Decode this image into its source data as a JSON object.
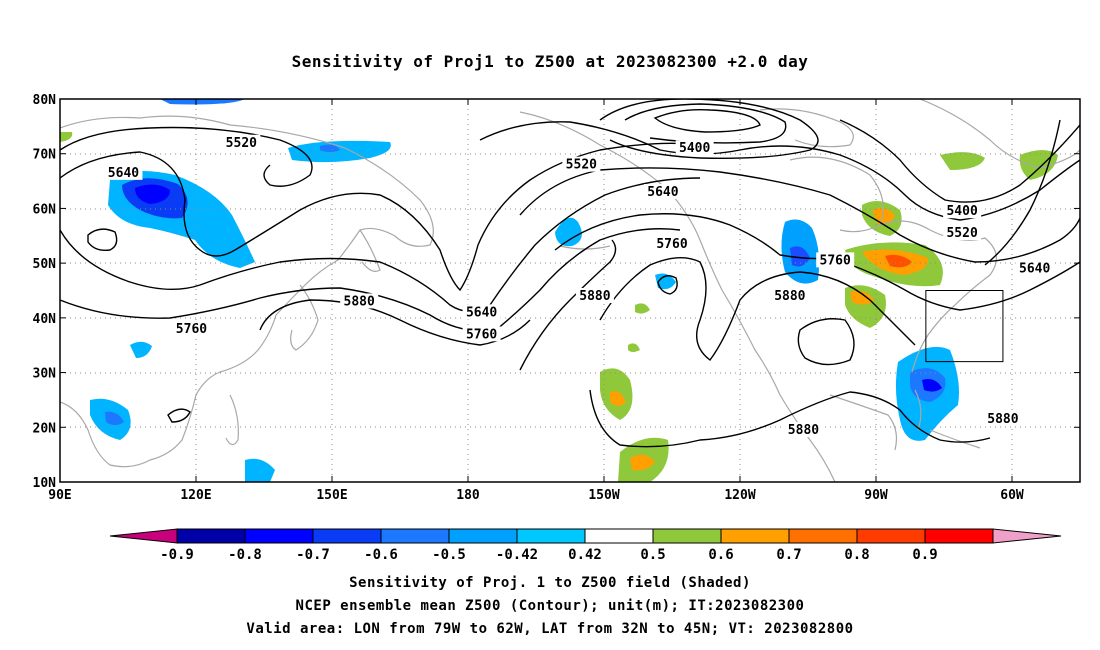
{
  "title": "Sensitivity of Proj1 to Z500 at 2023082300 +2.0 day",
  "lat_labels": [
    "10N",
    "20N",
    "30N",
    "40N",
    "50N",
    "60N",
    "70N",
    "80N"
  ],
  "lon_labels": [
    "90E",
    "120E",
    "150E",
    "180",
    "150W",
    "120W",
    "90W",
    "60W"
  ],
  "map": {
    "lon_range_east": [
      90,
      315
    ],
    "lat_range": [
      10,
      80
    ],
    "grid": "dotted",
    "valid_box": {
      "lon_w": 79,
      "lon_e": 62,
      "lat_s": 32,
      "lat_n": 45
    }
  },
  "contour_labels": [
    {
      "text": "5520",
      "lon_e": 130,
      "lat": 72
    },
    {
      "text": "5640",
      "lon_e": 104,
      "lat": 66.5
    },
    {
      "text": "5760",
      "lon_e": 119,
      "lat": 38
    },
    {
      "text": "5880",
      "lon_e": 156,
      "lat": 43
    },
    {
      "text": "5640",
      "lon_e": 183,
      "lat": 41
    },
    {
      "text": "5760",
      "lon_e": 183,
      "lat": 37
    },
    {
      "text": "5520",
      "lon_e": 205,
      "lat": 68
    },
    {
      "text": "5400",
      "lon_e": 230,
      "lat": 71
    },
    {
      "text": "5640",
      "lon_e": 223,
      "lat": 63
    },
    {
      "text": "5760",
      "lon_e": 225,
      "lat": 53.5
    },
    {
      "text": "5880",
      "lon_e": 208,
      "lat": 44
    },
    {
      "text": "5880",
      "lon_e": 251,
      "lat": 44
    },
    {
      "text": "5760",
      "lon_e": 261,
      "lat": 50.5
    },
    {
      "text": "5400",
      "lon_e": 289,
      "lat": 59.5
    },
    {
      "text": "5520",
      "lon_e": 289,
      "lat": 55.5
    },
    {
      "text": "5640",
      "lon_e": 305,
      "lat": 49
    },
    {
      "text": "5880",
      "lon_e": 254,
      "lat": 19.5
    },
    {
      "text": "5880",
      "lon_e": 298,
      "lat": 21.5
    }
  ],
  "colorbar": {
    "labels": [
      "-0.9",
      "-0.8",
      "-0.7",
      "-0.6",
      "-0.5",
      "-0.42",
      "0.42",
      "0.5",
      "0.6",
      "0.7",
      "0.8",
      "0.9"
    ],
    "colors": [
      "#0000a8",
      "#0000ff",
      "#0a3cf5",
      "#1c78ff",
      "#00a0ff",
      "#00c8ff",
      "#ffffff",
      "#8fc83a",
      "#ffa000",
      "#ff7000",
      "#ff3c00",
      "#ff0000"
    ],
    "below_color": "#c8007c",
    "above_color": "#f0a0c8"
  },
  "captions": [
    "Sensitivity of Proj. 1 to Z500 field (Shaded)",
    "NCEP ensemble mean Z500 (Contour); unit(m); IT:2023082300",
    "Valid area: LON from 79W to 62W, LAT from 32N to 45N; VT: 2023082800"
  ]
}
